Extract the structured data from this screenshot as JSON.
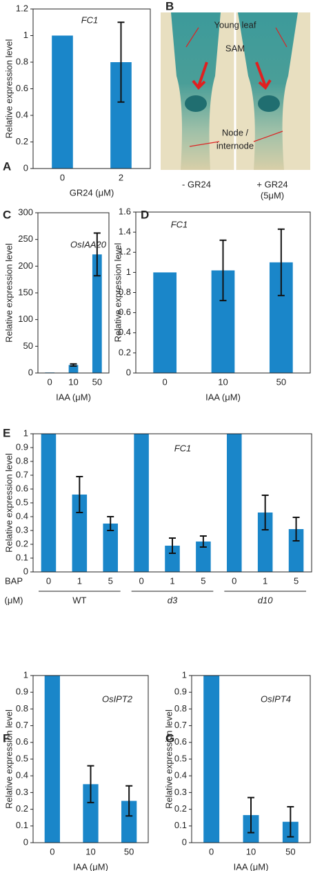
{
  "chart_data": [
    {
      "letter": "A",
      "type": "bar",
      "title": "FC1",
      "ylabel": "Relative expression  level",
      "xlabel": "GR24 (μM)",
      "categories": [
        "0",
        "2"
      ],
      "values": [
        1,
        0.8
      ],
      "errors": [
        null,
        0.3
      ],
      "color": "#1a86c9",
      "ylim": [
        0,
        1.2
      ],
      "yticks": [
        0,
        0.2,
        0.4,
        0.6,
        0.8,
        1,
        1.2
      ]
    },
    {
      "letter": "C",
      "type": "bar",
      "title": "OsIAA20",
      "ylabel": "Relative expression level",
      "xlabel": "IAA (μM)",
      "categories": [
        "0",
        "10",
        "50"
      ],
      "values": [
        1,
        15,
        222
      ],
      "errors": [
        null,
        2,
        40
      ],
      "color": "#1a86c9",
      "ylim": [
        0,
        300
      ],
      "yticks": [
        0,
        50,
        100,
        150,
        200,
        250,
        300
      ]
    },
    {
      "letter": "D",
      "type": "bar",
      "title": "FC1",
      "ylabel": "Relative expression level",
      "xlabel": "IAA (μM)",
      "categories": [
        "0",
        "10",
        "50"
      ],
      "values": [
        1,
        1.02,
        1.1
      ],
      "errors": [
        null,
        0.3,
        0.33
      ],
      "color": "#1a86c9",
      "ylim": [
        0,
        1.6
      ],
      "yticks": [
        0,
        0.2,
        0.4,
        0.6,
        0.8,
        1,
        1.2,
        1.4,
        1.6
      ]
    },
    {
      "letter": "E",
      "type": "bar",
      "title": "FC1",
      "ylabel": "Relative expression  level",
      "xlabel": "BAP",
      "xunit": "(μM)",
      "groups": [
        "WT",
        "d3",
        "d10"
      ],
      "categories": [
        "0",
        "1",
        "5",
        "0",
        "1",
        "5",
        "0",
        "1",
        "5"
      ],
      "values": [
        1,
        0.56,
        0.35,
        1,
        0.19,
        0.22,
        1,
        0.43,
        0.31
      ],
      "errors": [
        null,
        0.13,
        0.05,
        null,
        0.055,
        0.04,
        null,
        0.125,
        0.085
      ],
      "color": "#1a86c9",
      "ylim": [
        0,
        1
      ],
      "yticks": [
        0,
        0.1,
        0.2,
        0.3,
        0.4,
        0.5,
        0.6,
        0.7,
        0.8,
        0.9,
        1
      ]
    },
    {
      "letter": "F",
      "type": "bar",
      "title": "OsIPT2",
      "ylabel": "Relative expression  level",
      "xlabel": "IAA (μM)",
      "categories": [
        "0",
        "10",
        "50"
      ],
      "values": [
        1,
        0.35,
        0.25
      ],
      "errors": [
        null,
        0.11,
        0.09
      ],
      "color": "#1a86c9",
      "ylim": [
        0,
        1
      ],
      "yticks": [
        0,
        0.1,
        0.2,
        0.3,
        0.4,
        0.5,
        0.6,
        0.7,
        0.8,
        0.9,
        1
      ]
    },
    {
      "letter": "G",
      "type": "bar",
      "title": "OsIPT4",
      "ylabel": "Relative expression  level",
      "xlabel": "IAA (μM)",
      "categories": [
        "0",
        "10",
        "50"
      ],
      "values": [
        1,
        0.165,
        0.125
      ],
      "errors": [
        null,
        0.105,
        0.09
      ],
      "color": "#1a86c9",
      "ylim": [
        0,
        1
      ],
      "yticks": [
        0,
        0.1,
        0.2,
        0.3,
        0.4,
        0.5,
        0.6,
        0.7,
        0.8,
        0.9,
        1
      ]
    }
  ],
  "image_panel": {
    "letter": "B",
    "labels": [
      "Young leaf",
      "SAM",
      "Node /",
      "internode"
    ],
    "captions": [
      "- GR24",
      "+ GR24",
      "(5μM)"
    ]
  }
}
